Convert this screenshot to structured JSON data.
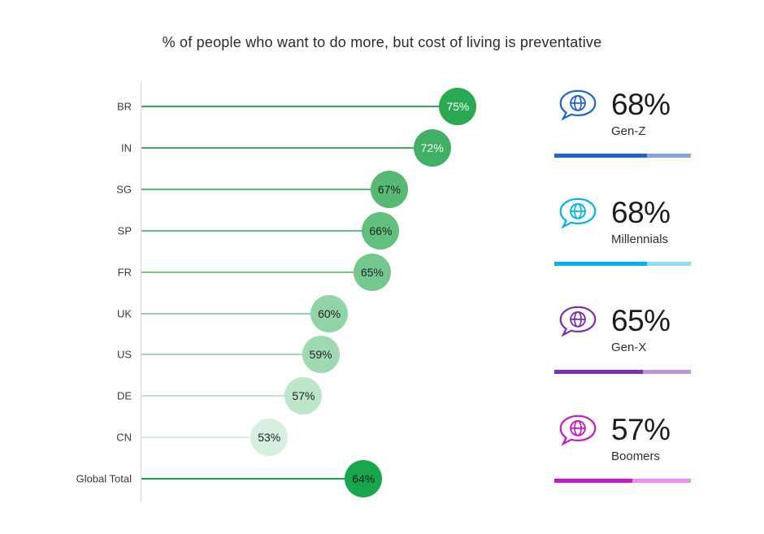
{
  "title": "% of people who want to do more, but cost of living is preventative",
  "chart_data": {
    "type": "bar",
    "variant": "lollipop",
    "orientation": "horizontal",
    "title": "% of people who want to do more, but cost of living is preventative",
    "categories": [
      "BR",
      "IN",
      "SG",
      "SP",
      "FR",
      "UK",
      "US",
      "DE",
      "CN",
      "Global Total"
    ],
    "values": [
      75,
      72,
      67,
      66,
      65,
      60,
      59,
      57,
      53,
      64
    ],
    "unit": "%",
    "xlim": [
      38,
      80
    ],
    "grid": false,
    "legend": "none",
    "axis_color": "#d8d8d8",
    "bubble_colors": [
      "#2aa852",
      "#40b164",
      "#56ba75",
      "#62c07f",
      "#74c88e",
      "#90d4a7",
      "#9ed9b2",
      "#bde5ca",
      "#d6f0df",
      "#16a74b"
    ],
    "bubble_text_colors": [
      "#ffffff",
      "#ffffff",
      "#222222",
      "#222222",
      "#222222",
      "#222222",
      "#222222",
      "#222222",
      "#222222",
      "#222222"
    ]
  },
  "stats": [
    {
      "label": "Gen-Z",
      "value": "68%",
      "pct": 68,
      "color": "#1e62d8",
      "track": "#85a3e9",
      "icon": "globe-speech-bubble-icon"
    },
    {
      "label": "Millennials",
      "value": "68%",
      "pct": 68,
      "color": "#00b3f0",
      "track": "#8bddf8",
      "icon": "globe-speech-bubble-icon"
    },
    {
      "label": "Gen-X",
      "value": "65%",
      "pct": 65,
      "color": "#7a2fb4",
      "track": "#bb93d8",
      "icon": "globe-speech-bubble-icon"
    },
    {
      "label": "Boomers",
      "value": "57%",
      "pct": 57,
      "color": "#cb16ce",
      "track": "#ec8dee",
      "icon": "globe-speech-bubble-icon"
    }
  ]
}
